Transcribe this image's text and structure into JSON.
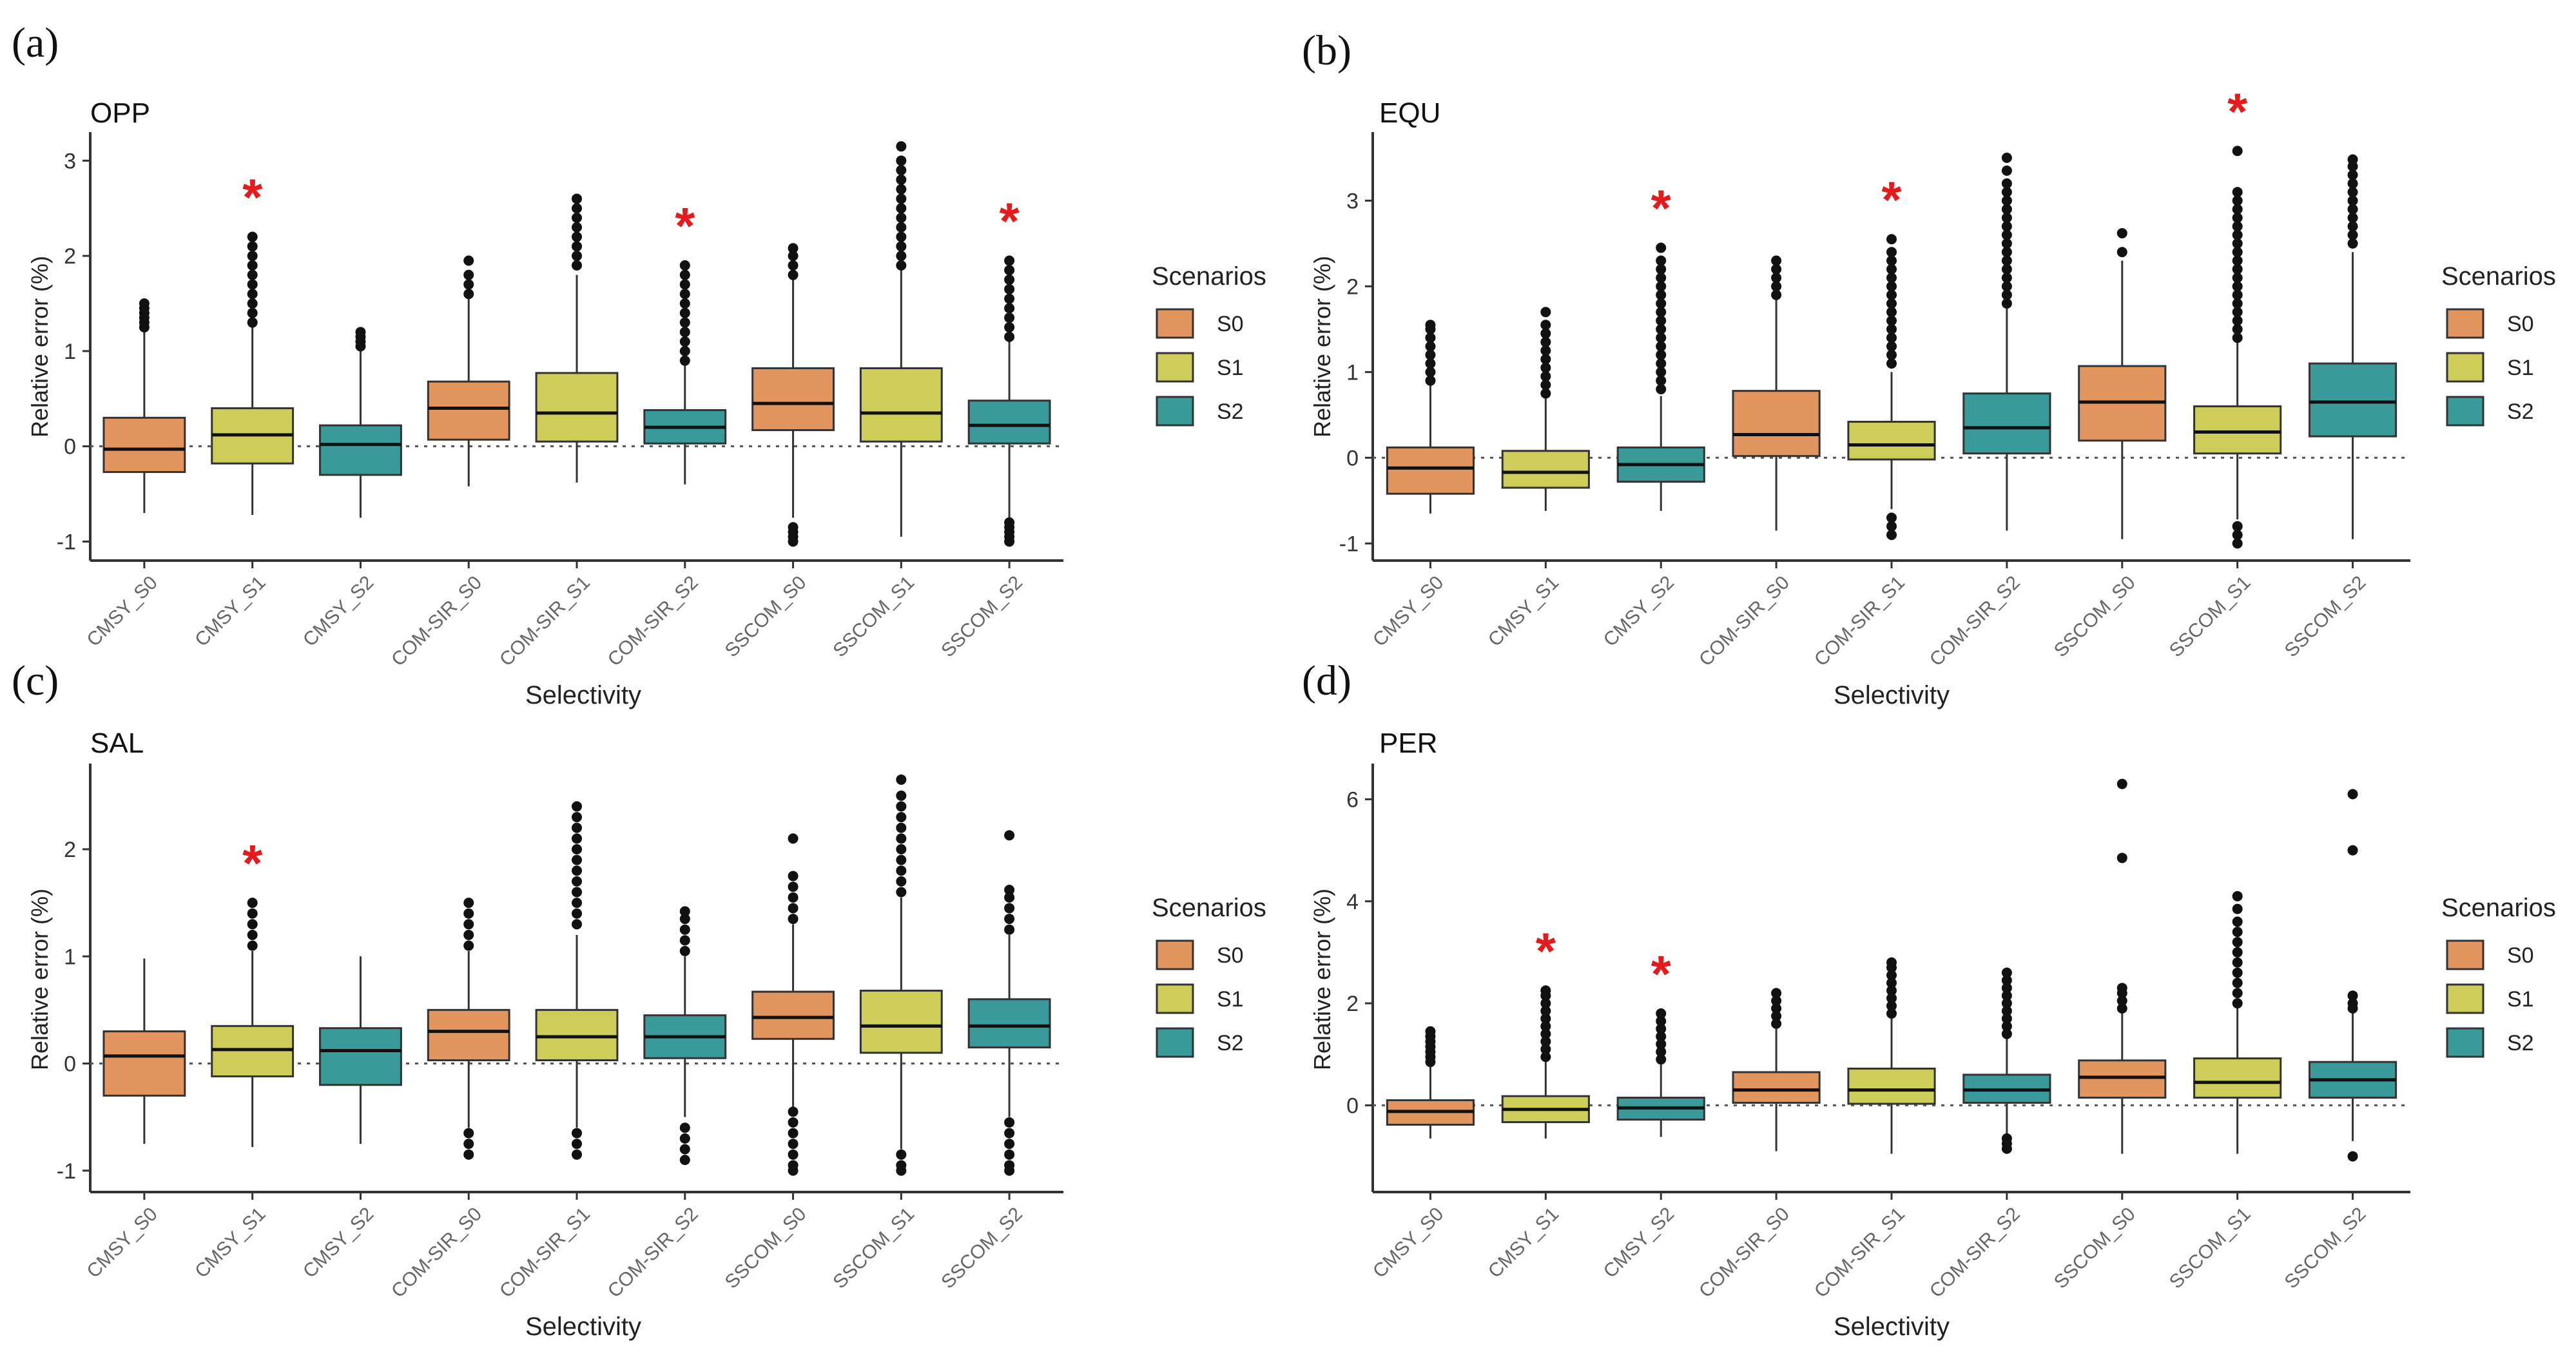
{
  "chart_data": [
    {
      "type": "box",
      "panel_label": "(a)",
      "title": "OPP",
      "xlabel": "Selectivity",
      "ylabel": "Relative error (%)",
      "ylim": [
        -1.2,
        3.3
      ],
      "yticks": [
        -1,
        0,
        1,
        2,
        3
      ],
      "reference_line": 0,
      "categories": [
        "CMSY_S0",
        "CMSY_S1",
        "CMSY_S2",
        "COM-SIR_S0",
        "COM-SIR_S1",
        "COM-SIR_S2",
        "SSCOM_S0",
        "SSCOM_S1",
        "SSCOM_S2"
      ],
      "groups": [
        "S0",
        "S1",
        "S2",
        "S0",
        "S1",
        "S2",
        "S0",
        "S1",
        "S2"
      ],
      "boxes": [
        {
          "lo": -0.7,
          "q1": -0.27,
          "median": -0.03,
          "q3": 0.3,
          "hi": 1.2,
          "outliers": [
            1.25,
            1.3,
            1.35,
            1.4,
            1.45,
            1.5
          ]
        },
        {
          "lo": -0.72,
          "q1": -0.18,
          "median": 0.12,
          "q3": 0.4,
          "hi": 1.25,
          "outliers": [
            1.3,
            1.4,
            1.5,
            1.6,
            1.7,
            1.8,
            1.9,
            2.0,
            2.1,
            2.2
          ]
        },
        {
          "lo": -0.75,
          "q1": -0.3,
          "median": 0.02,
          "q3": 0.22,
          "hi": 1.0,
          "outliers": [
            1.05,
            1.1,
            1.15,
            1.2
          ]
        },
        {
          "lo": -0.42,
          "q1": 0.07,
          "median": 0.4,
          "q3": 0.68,
          "hi": 1.55,
          "outliers": [
            1.6,
            1.7,
            1.8,
            1.95
          ]
        },
        {
          "lo": -0.38,
          "q1": 0.05,
          "median": 0.35,
          "q3": 0.77,
          "hi": 1.8,
          "outliers": [
            1.9,
            2.0,
            2.1,
            2.2,
            2.3,
            2.4,
            2.5,
            2.6
          ]
        },
        {
          "lo": -0.4,
          "q1": 0.03,
          "median": 0.2,
          "q3": 0.38,
          "hi": 0.85,
          "outliers": [
            0.9,
            1.0,
            1.1,
            1.2,
            1.3,
            1.4,
            1.5,
            1.6,
            1.7,
            1.8,
            1.9
          ]
        },
        {
          "lo": -0.75,
          "q1": 0.17,
          "median": 0.45,
          "q3": 0.82,
          "hi": 1.75,
          "outliers": [
            -0.85,
            -0.9,
            -0.95,
            -1.0,
            1.8,
            1.9,
            2.0,
            2.08
          ]
        },
        {
          "lo": -0.95,
          "q1": 0.05,
          "median": 0.35,
          "q3": 0.82,
          "hi": 1.85,
          "outliers": [
            1.9,
            2.0,
            2.1,
            2.2,
            2.3,
            2.4,
            2.5,
            2.6,
            2.7,
            2.8,
            2.9,
            3.0,
            3.15
          ]
        },
        {
          "lo": -0.75,
          "q1": 0.03,
          "median": 0.22,
          "q3": 0.48,
          "hi": 1.1,
          "outliers": [
            -0.8,
            -0.85,
            -0.9,
            -0.95,
            -1.0,
            1.15,
            1.25,
            1.35,
            1.45,
            1.55,
            1.65,
            1.75,
            1.85,
            1.95
          ]
        }
      ],
      "significant_categories": [
        "CMSY_S1",
        "COM-SIR_S2",
        "SSCOM_S2"
      ],
      "significance_marker": "*",
      "legend": {
        "title": "Scenarios",
        "labels": [
          "S0",
          "S1",
          "S2"
        ]
      }
    },
    {
      "type": "box",
      "panel_label": "(b)",
      "title": "EQU",
      "xlabel": "Selectivity",
      "ylabel": "Relative error (%)",
      "ylim": [
        -1.2,
        3.8
      ],
      "yticks": [
        -1,
        0,
        1,
        2,
        3
      ],
      "reference_line": 0,
      "categories": [
        "CMSY_S0",
        "CMSY_S1",
        "CMSY_S2",
        "COM-SIR_S0",
        "COM-SIR_S1",
        "COM-SIR_S2",
        "SSCOM_S0",
        "SSCOM_S1",
        "SSCOM_S2"
      ],
      "groups": [
        "S0",
        "S1",
        "S2",
        "S0",
        "S1",
        "S2",
        "S0",
        "S1",
        "S2"
      ],
      "boxes": [
        {
          "lo": -0.65,
          "q1": -0.42,
          "median": -0.12,
          "q3": 0.12,
          "hi": 0.85,
          "outliers": [
            0.9,
            1.0,
            1.1,
            1.2,
            1.3,
            1.4,
            1.5,
            1.55
          ]
        },
        {
          "lo": -0.62,
          "q1": -0.35,
          "median": -0.17,
          "q3": 0.08,
          "hi": 0.7,
          "outliers": [
            0.75,
            0.85,
            0.95,
            1.05,
            1.15,
            1.25,
            1.35,
            1.45,
            1.55,
            1.7
          ]
        },
        {
          "lo": -0.62,
          "q1": -0.28,
          "median": -0.08,
          "q3": 0.12,
          "hi": 0.72,
          "outliers": [
            0.8,
            0.9,
            1.0,
            1.1,
            1.2,
            1.3,
            1.4,
            1.5,
            1.6,
            1.7,
            1.8,
            1.9,
            2.0,
            2.1,
            2.2,
            2.3,
            2.45
          ]
        },
        {
          "lo": -0.85,
          "q1": 0.02,
          "median": 0.27,
          "q3": 0.78,
          "hi": 1.85,
          "outliers": [
            1.9,
            2.0,
            2.1,
            2.2,
            2.3
          ]
        },
        {
          "lo": -0.6,
          "q1": -0.02,
          "median": 0.15,
          "q3": 0.42,
          "hi": 1.0,
          "outliers": [
            -0.7,
            -0.8,
            -0.9,
            1.1,
            1.2,
            1.3,
            1.4,
            1.5,
            1.6,
            1.7,
            1.8,
            1.9,
            2.0,
            2.1,
            2.2,
            2.3,
            2.4,
            2.55
          ]
        },
        {
          "lo": -0.85,
          "q1": 0.05,
          "median": 0.35,
          "q3": 0.75,
          "hi": 1.75,
          "outliers": [
            1.8,
            1.9,
            2.0,
            2.1,
            2.2,
            2.3,
            2.4,
            2.5,
            2.6,
            2.7,
            2.8,
            2.9,
            3.0,
            3.1,
            3.2,
            3.35,
            3.5
          ]
        },
        {
          "lo": -0.95,
          "q1": 0.2,
          "median": 0.65,
          "q3": 1.07,
          "hi": 2.3,
          "outliers": [
            2.4,
            2.62
          ]
        },
        {
          "lo": -0.72,
          "q1": 0.05,
          "median": 0.3,
          "q3": 0.6,
          "hi": 1.35,
          "outliers": [
            -0.8,
            -0.9,
            -1.0,
            1.4,
            1.5,
            1.6,
            1.7,
            1.8,
            1.9,
            2.0,
            2.1,
            2.2,
            2.3,
            2.4,
            2.5,
            2.6,
            2.7,
            2.8,
            2.9,
            3.0,
            3.1,
            3.58
          ]
        },
        {
          "lo": -0.95,
          "q1": 0.25,
          "median": 0.65,
          "q3": 1.1,
          "hi": 2.4,
          "outliers": [
            2.5,
            2.6,
            2.7,
            2.8,
            2.9,
            3.0,
            3.1,
            3.2,
            3.3,
            3.4,
            3.48
          ]
        }
      ],
      "significant_categories": [
        "CMSY_S2",
        "COM-SIR_S1",
        "SSCOM_S1"
      ],
      "significance_marker": "*",
      "legend": {
        "title": "Scenarios",
        "labels": [
          "S0",
          "S1",
          "S2"
        ]
      }
    },
    {
      "type": "box",
      "panel_label": "(c)",
      "title": "SAL",
      "xlabel": "Selectivity",
      "ylabel": "Relative error (%)",
      "ylim": [
        -1.2,
        2.8
      ],
      "yticks": [
        -1,
        0,
        1,
        2
      ],
      "reference_line": 0,
      "categories": [
        "CMSY_S0",
        "CMSY_S1",
        "CMSY_S2",
        "COM-SIR_S0",
        "COM-SIR_S1",
        "COM-SIR_S2",
        "SSCOM_S0",
        "SSCOM_S1",
        "SSCOM_S2"
      ],
      "groups": [
        "S0",
        "S1",
        "S2",
        "S0",
        "S1",
        "S2",
        "S0",
        "S1",
        "S2"
      ],
      "boxes": [
        {
          "lo": -0.75,
          "q1": -0.3,
          "median": 0.07,
          "q3": 0.3,
          "hi": 0.98,
          "outliers": []
        },
        {
          "lo": -0.78,
          "q1": -0.12,
          "median": 0.13,
          "q3": 0.35,
          "hi": 1.05,
          "outliers": [
            1.1,
            1.2,
            1.3,
            1.4,
            1.5
          ]
        },
        {
          "lo": -0.75,
          "q1": -0.2,
          "median": 0.12,
          "q3": 0.33,
          "hi": 1.0,
          "outliers": []
        },
        {
          "lo": -0.6,
          "q1": 0.03,
          "median": 0.3,
          "q3": 0.5,
          "hi": 1.05,
          "outliers": [
            -0.65,
            -0.75,
            -0.85,
            1.1,
            1.2,
            1.3,
            1.4,
            1.5
          ]
        },
        {
          "lo": -0.6,
          "q1": 0.03,
          "median": 0.25,
          "q3": 0.5,
          "hi": 1.2,
          "outliers": [
            -0.65,
            -0.75,
            -0.85,
            1.3,
            1.4,
            1.5,
            1.6,
            1.7,
            1.8,
            1.9,
            2.0,
            2.1,
            2.2,
            2.3,
            2.4
          ]
        },
        {
          "lo": -0.5,
          "q1": 0.05,
          "median": 0.25,
          "q3": 0.45,
          "hi": 1.0,
          "outliers": [
            -0.6,
            -0.7,
            -0.8,
            -0.9,
            1.05,
            1.15,
            1.25,
            1.35,
            1.42
          ]
        },
        {
          "lo": -0.42,
          "q1": 0.23,
          "median": 0.43,
          "q3": 0.67,
          "hi": 1.3,
          "outliers": [
            -0.45,
            -0.55,
            -0.65,
            -0.75,
            -0.85,
            -0.95,
            -1.0,
            1.35,
            1.45,
            1.55,
            1.65,
            1.75,
            2.1
          ]
        },
        {
          "lo": -0.8,
          "q1": 0.1,
          "median": 0.35,
          "q3": 0.68,
          "hi": 1.55,
          "outliers": [
            -0.85,
            -0.95,
            -1.0,
            1.6,
            1.7,
            1.8,
            1.9,
            2.0,
            2.1,
            2.2,
            2.3,
            2.4,
            2.5,
            2.65
          ]
        },
        {
          "lo": -0.5,
          "q1": 0.15,
          "median": 0.35,
          "q3": 0.6,
          "hi": 1.2,
          "outliers": [
            -0.55,
            -0.65,
            -0.75,
            -0.85,
            -0.95,
            -1.0,
            1.25,
            1.35,
            1.45,
            1.55,
            1.62,
            2.13
          ]
        }
      ],
      "significant_categories": [
        "CMSY_S1"
      ],
      "significance_marker": "*",
      "legend": {
        "title": "Scenarios",
        "labels": [
          "S0",
          "S1",
          "S2"
        ]
      }
    },
    {
      "type": "box",
      "panel_label": "(d)",
      "title": "PER",
      "xlabel": "Selectivity",
      "ylabel": "Relative error (%)",
      "ylim": [
        -1.7,
        6.7
      ],
      "yticks": [
        0,
        2,
        4,
        6
      ],
      "reference_line": 0,
      "categories": [
        "CMSY_S0",
        "CMSY_S1",
        "CMSY_S2",
        "COM-SIR_S0",
        "COM-SIR_S1",
        "COM-SIR_S2",
        "SSCOM_S0",
        "SSCOM_S1",
        "SSCOM_S2"
      ],
      "groups": [
        "S0",
        "S1",
        "S2",
        "S0",
        "S1",
        "S2",
        "S0",
        "S1",
        "S2"
      ],
      "boxes": [
        {
          "lo": -0.65,
          "q1": -0.38,
          "median": -0.12,
          "q3": 0.1,
          "hi": 0.75,
          "outliers": [
            0.85,
            0.95,
            1.05,
            1.15,
            1.25,
            1.35,
            1.45
          ]
        },
        {
          "lo": -0.65,
          "q1": -0.33,
          "median": -0.08,
          "q3": 0.18,
          "hi": 0.85,
          "outliers": [
            0.95,
            1.1,
            1.25,
            1.4,
            1.55,
            1.7,
            1.85,
            2.0,
            2.15,
            2.25
          ]
        },
        {
          "lo": -0.62,
          "q1": -0.28,
          "median": -0.05,
          "q3": 0.15,
          "hi": 0.8,
          "outliers": [
            0.9,
            1.05,
            1.2,
            1.35,
            1.5,
            1.65,
            1.8
          ]
        },
        {
          "lo": -0.9,
          "q1": 0.05,
          "median": 0.3,
          "q3": 0.65,
          "hi": 1.5,
          "outliers": [
            1.6,
            1.75,
            1.9,
            2.05,
            2.2
          ]
        },
        {
          "lo": -0.95,
          "q1": 0.03,
          "median": 0.3,
          "q3": 0.72,
          "hi": 1.7,
          "outliers": [
            1.8,
            1.95,
            2.1,
            2.25,
            2.4,
            2.55,
            2.7,
            2.8
          ]
        },
        {
          "lo": -0.55,
          "q1": 0.05,
          "median": 0.3,
          "q3": 0.6,
          "hi": 1.3,
          "outliers": [
            -0.65,
            -0.75,
            -0.85,
            1.4,
            1.55,
            1.7,
            1.85,
            2.0,
            2.15,
            2.3,
            2.45,
            2.6
          ]
        },
        {
          "lo": -0.95,
          "q1": 0.15,
          "median": 0.55,
          "q3": 0.88,
          "hi": 1.8,
          "outliers": [
            1.9,
            2.05,
            2.2,
            2.3,
            4.85,
            6.3
          ]
        },
        {
          "lo": -0.95,
          "q1": 0.15,
          "median": 0.45,
          "q3": 0.92,
          "hi": 1.9,
          "outliers": [
            2.0,
            2.2,
            2.4,
            2.6,
            2.8,
            3.0,
            3.2,
            3.4,
            3.6,
            3.85,
            4.1
          ]
        },
        {
          "lo": -0.7,
          "q1": 0.15,
          "median": 0.5,
          "q3": 0.85,
          "hi": 1.8,
          "outliers": [
            -1.0,
            1.9,
            2.0,
            2.15,
            5.0,
            6.1
          ]
        }
      ],
      "significant_categories": [
        "CMSY_S1",
        "CMSY_S2"
      ],
      "significance_marker": "*",
      "legend": {
        "title": "Scenarios",
        "labels": [
          "S0",
          "S1",
          "S2"
        ]
      }
    }
  ],
  "colors": {
    "S0": "#e3955f",
    "S1": "#cdcd5a",
    "S2": "#3a9a9a",
    "axis": "#333333",
    "box_stroke": "#333333",
    "star": "#e41a1c"
  }
}
